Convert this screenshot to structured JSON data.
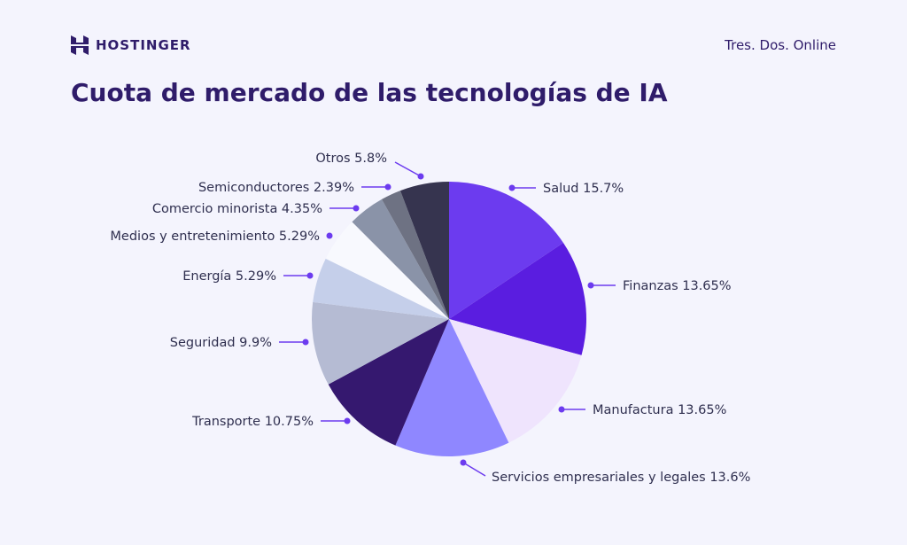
{
  "header": {
    "logo_text": "HOSTINGER",
    "right_text": "Tres. Dos. Online",
    "title": "Cuota de mercado de las tecnologías de IA"
  },
  "chart_data": {
    "type": "pie",
    "title": "Cuota de mercado de las tecnologías de IA",
    "start": "top",
    "direction": "clockwise",
    "accent_color": "#6c3bef",
    "slices": [
      {
        "label": "Salud 15.7%",
        "name": "Salud",
        "value": 15.7,
        "color": "#6c3bef"
      },
      {
        "label": "Finanzas 13.65%",
        "name": "Finanzas",
        "value": 13.65,
        "color": "#5a1de0"
      },
      {
        "label": "Manufactura 13.65%",
        "name": "Manufactura",
        "value": 13.65,
        "color": "#efe4fd"
      },
      {
        "label": "Servicios empresariales y legales 13.6%",
        "name": "Servicios empresariales y legales",
        "value": 13.6,
        "color": "#8f87ff"
      },
      {
        "label": "Transporte 10.75%",
        "name": "Transporte",
        "value": 10.75,
        "color": "#35186f"
      },
      {
        "label": "Seguridad 9.9%",
        "name": "Seguridad",
        "value": 9.9,
        "color": "#b5bbd3"
      },
      {
        "label": "Energía 5.29%",
        "name": "Energía",
        "value": 5.29,
        "color": "#c5cfea"
      },
      {
        "label": "Medios y entretenimiento 5.29%",
        "name": "Medios y entretenimiento",
        "value": 5.29,
        "color": "#f8f9fe"
      },
      {
        "label": "Comercio minorista 4.35%",
        "name": "Comercio minorista",
        "value": 4.35,
        "color": "#8a93a8"
      },
      {
        "label": "Semiconductores 2.39%",
        "name": "Semiconductores",
        "value": 2.39,
        "color": "#6e7283"
      },
      {
        "label": "Otros 5.8%",
        "name": "Otros",
        "value": 5.8,
        "color": "#36344f"
      }
    ]
  }
}
